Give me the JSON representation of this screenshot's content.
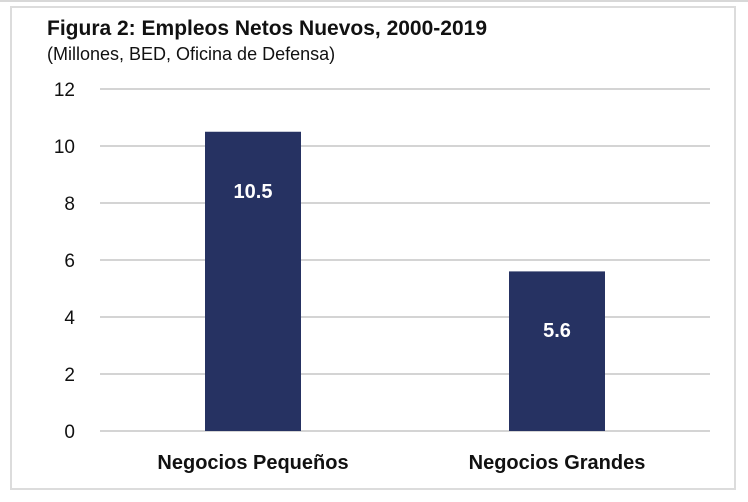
{
  "chart_data": {
    "type": "bar",
    "title": "Figura 2: Empleos Netos Nuevos, 2000-2019",
    "subtitle": "(Millones, BED, Oficina de Defensa)",
    "categories": [
      "Negocios Pequeños",
      "Negocios Grandes"
    ],
    "values": [
      10.5,
      5.6
    ],
    "data_labels": [
      "10.5",
      "5.6"
    ],
    "ylim": [
      0,
      12
    ],
    "yticks": [
      "0",
      "2",
      "4",
      "6",
      "8",
      "10",
      "12"
    ],
    "grid": true,
    "colors": {
      "bar": "#263262",
      "grid": "#d4d4d4",
      "label": "#ffffff"
    }
  }
}
